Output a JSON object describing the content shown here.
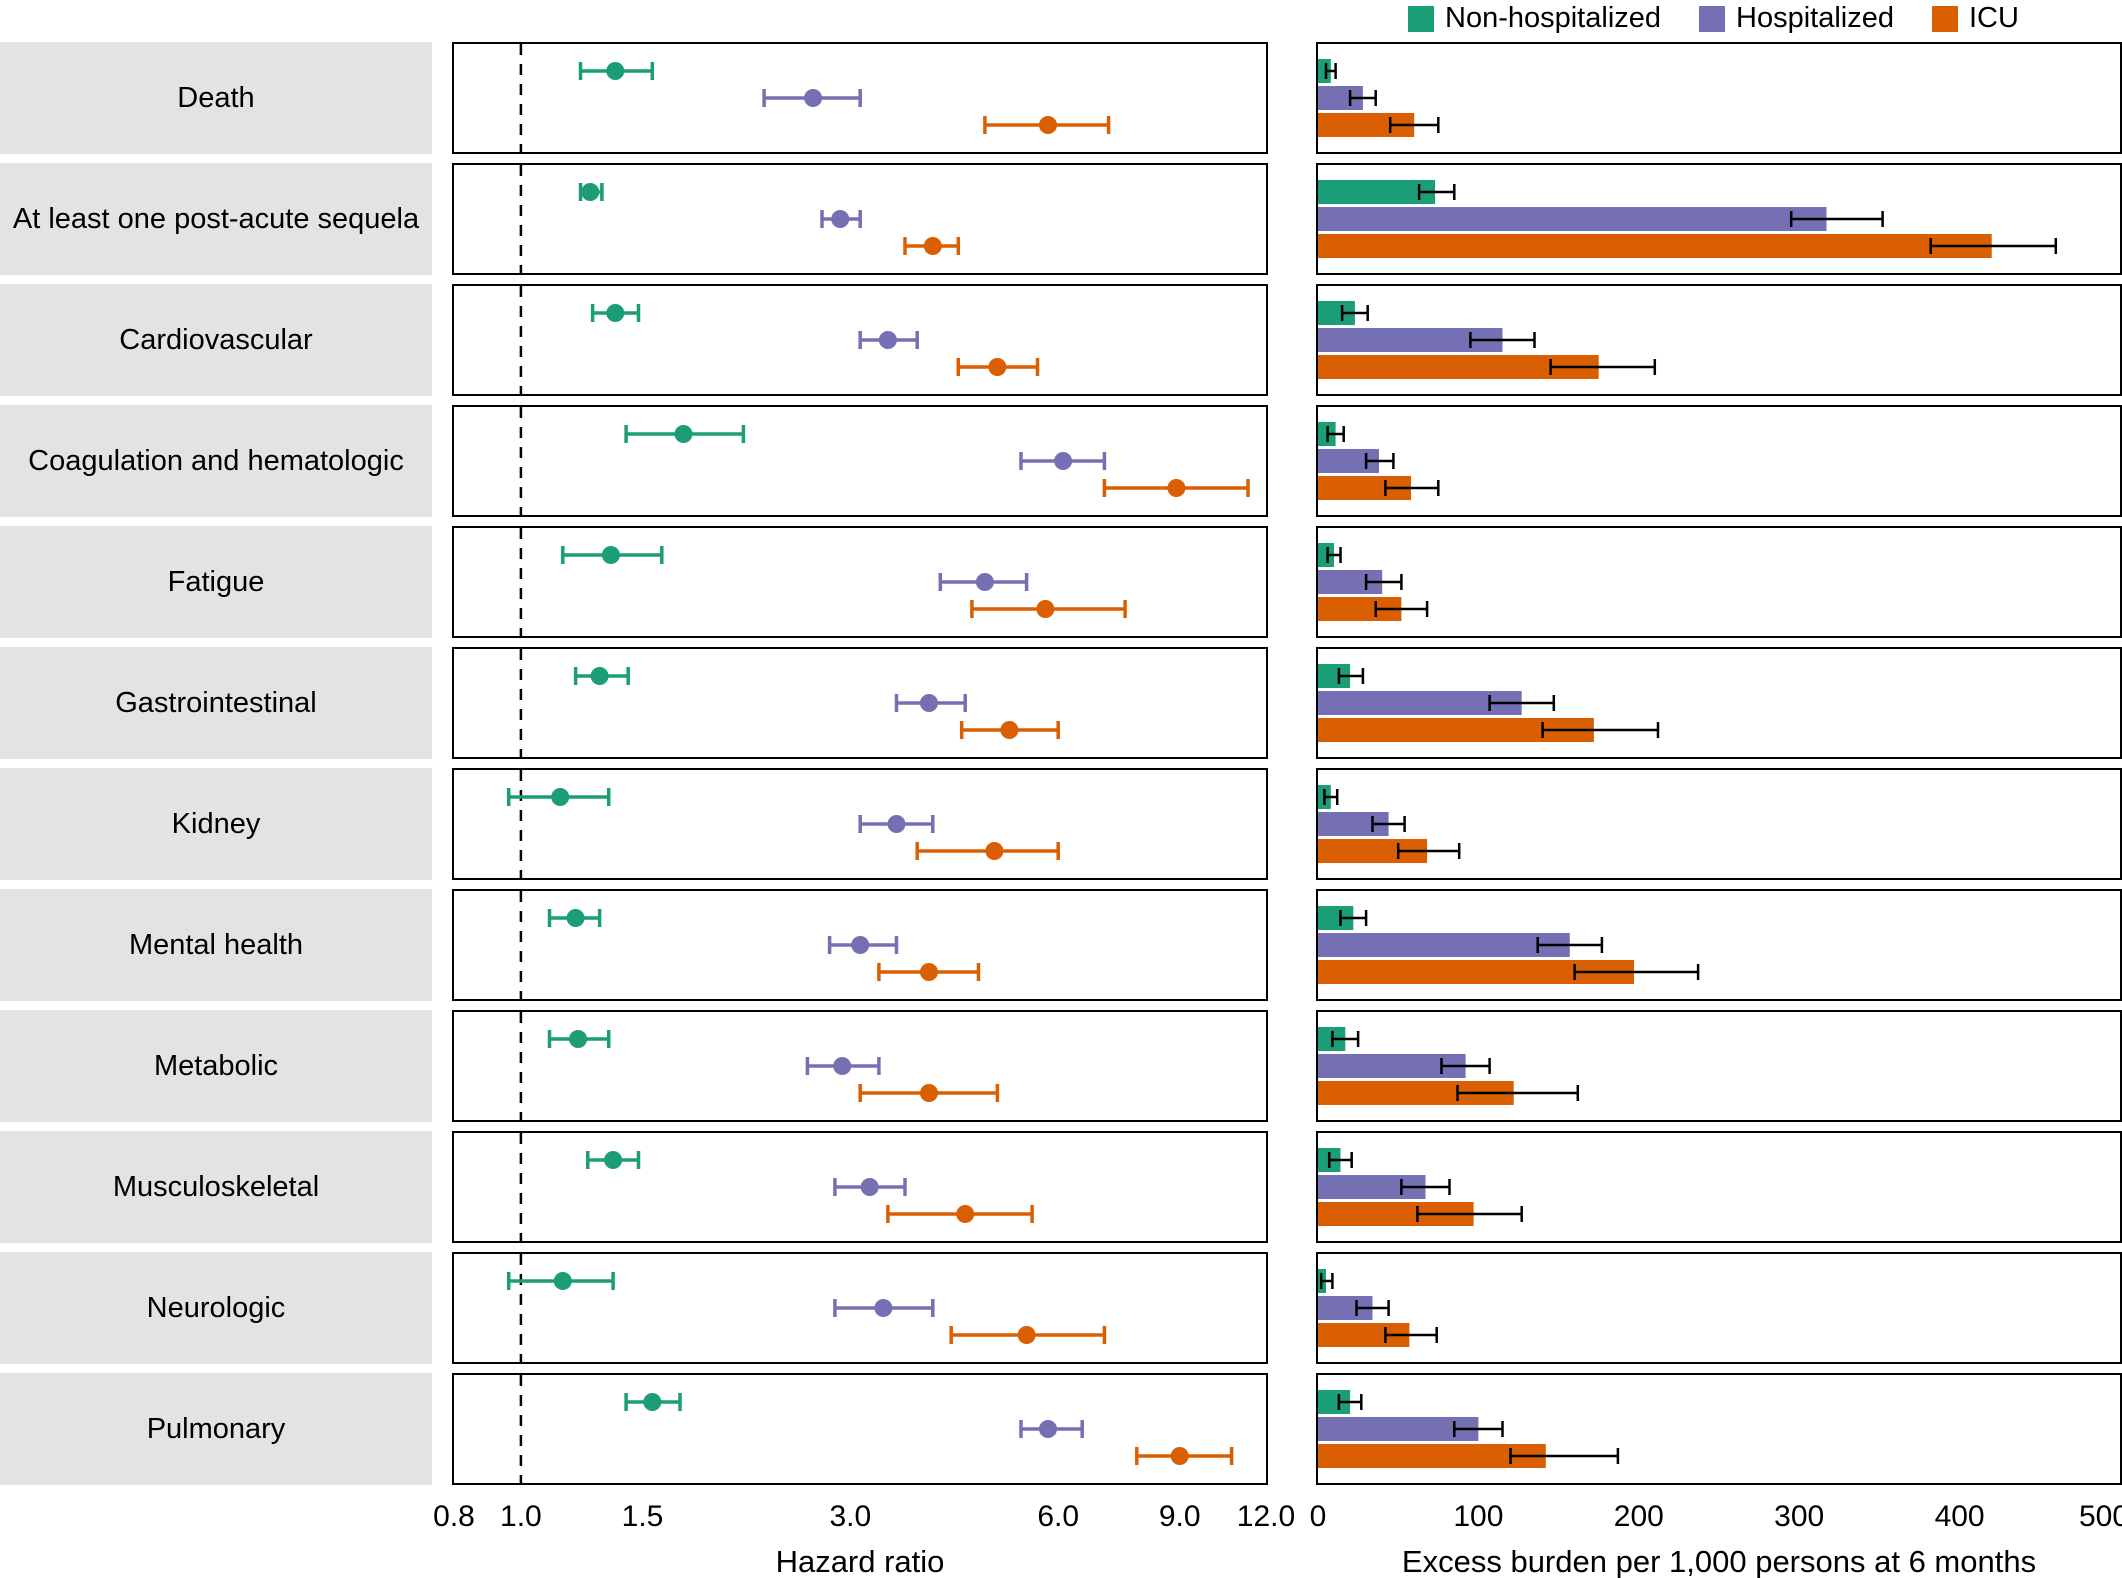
{
  "chart_data": {
    "type": "forest_and_bar",
    "legend": [
      {
        "label": "Non-hospitalized",
        "key": "non_hospitalized",
        "color": "#1b9e77"
      },
      {
        "label": "Hospitalized",
        "key": "hospitalized",
        "color": "#7570b3"
      },
      {
        "label": "ICU",
        "key": "icu",
        "color": "#d95f02"
      }
    ],
    "hr_axis": {
      "label": "Hazard ratio",
      "scale": "log",
      "range": [
        0.8,
        12.0
      ],
      "ticks": [
        0.8,
        1.0,
        1.5,
        3.0,
        6.0,
        9.0,
        12.0
      ],
      "tick_labels": [
        "0.8",
        "1.0",
        "1.5",
        "3.0",
        "6.0",
        "9.0",
        "12.0"
      ],
      "reference_line": 1.0,
      "grid": false
    },
    "burden_axis": {
      "label": "Excess burden per 1,000 persons at 6 months",
      "scale": "linear",
      "range": [
        0,
        500
      ],
      "ticks": [
        0,
        100,
        200,
        300,
        400,
        500
      ],
      "tick_labels": [
        "0",
        "100",
        "200",
        "300",
        "400",
        "500"
      ],
      "grid": false
    },
    "rows": [
      {
        "category": "Death",
        "hazard_ratio": {
          "non_hospitalized": {
            "est": 1.37,
            "lo": 1.22,
            "hi": 1.55
          },
          "hospitalized": {
            "est": 2.65,
            "lo": 2.25,
            "hi": 3.1
          },
          "icu": {
            "est": 5.8,
            "lo": 4.7,
            "hi": 7.1
          }
        },
        "excess_burden": {
          "non_hospitalized": {
            "est": 8,
            "lo": 5,
            "hi": 11
          },
          "hospitalized": {
            "est": 28,
            "lo": 20,
            "hi": 36
          },
          "icu": {
            "est": 60,
            "lo": 45,
            "hi": 75
          }
        }
      },
      {
        "category": "At least one post-acute sequela",
        "hazard_ratio": {
          "non_hospitalized": {
            "est": 1.26,
            "lo": 1.22,
            "hi": 1.31
          },
          "hospitalized": {
            "est": 2.9,
            "lo": 2.73,
            "hi": 3.1
          },
          "icu": {
            "est": 3.95,
            "lo": 3.6,
            "hi": 4.3
          }
        },
        "excess_burden": {
          "non_hospitalized": {
            "est": 73,
            "lo": 63,
            "hi": 85
          },
          "hospitalized": {
            "est": 317,
            "lo": 295,
            "hi": 352
          },
          "icu": {
            "est": 420,
            "lo": 382,
            "hi": 460
          }
        }
      },
      {
        "category": "Cardiovascular",
        "hazard_ratio": {
          "non_hospitalized": {
            "est": 1.37,
            "lo": 1.27,
            "hi": 1.48
          },
          "hospitalized": {
            "est": 3.4,
            "lo": 3.1,
            "hi": 3.75
          },
          "icu": {
            "est": 4.9,
            "lo": 4.3,
            "hi": 5.6
          }
        },
        "excess_burden": {
          "non_hospitalized": {
            "est": 23,
            "lo": 15,
            "hi": 31
          },
          "hospitalized": {
            "est": 115,
            "lo": 95,
            "hi": 135
          },
          "icu": {
            "est": 175,
            "lo": 145,
            "hi": 210
          }
        }
      },
      {
        "category": "Coagulation and hematologic",
        "hazard_ratio": {
          "non_hospitalized": {
            "est": 1.72,
            "lo": 1.42,
            "hi": 2.1
          },
          "hospitalized": {
            "est": 6.1,
            "lo": 5.3,
            "hi": 7.0
          },
          "icu": {
            "est": 8.9,
            "lo": 7.0,
            "hi": 11.3
          }
        },
        "excess_burden": {
          "non_hospitalized": {
            "est": 11,
            "lo": 6,
            "hi": 16
          },
          "hospitalized": {
            "est": 38,
            "lo": 30,
            "hi": 47
          },
          "icu": {
            "est": 58,
            "lo": 42,
            "hi": 75
          }
        }
      },
      {
        "category": "Fatigue",
        "hazard_ratio": {
          "non_hospitalized": {
            "est": 1.35,
            "lo": 1.15,
            "hi": 1.6
          },
          "hospitalized": {
            "est": 4.7,
            "lo": 4.05,
            "hi": 5.4
          },
          "icu": {
            "est": 5.75,
            "lo": 4.5,
            "hi": 7.5
          }
        },
        "excess_burden": {
          "non_hospitalized": {
            "est": 10,
            "lo": 6,
            "hi": 14
          },
          "hospitalized": {
            "est": 40,
            "lo": 30,
            "hi": 52
          },
          "icu": {
            "est": 52,
            "lo": 36,
            "hi": 68
          }
        }
      },
      {
        "category": "Gastrointestinal",
        "hazard_ratio": {
          "non_hospitalized": {
            "est": 1.3,
            "lo": 1.2,
            "hi": 1.43
          },
          "hospitalized": {
            "est": 3.9,
            "lo": 3.5,
            "hi": 4.4
          },
          "icu": {
            "est": 5.1,
            "lo": 4.35,
            "hi": 6.0
          }
        },
        "excess_burden": {
          "non_hospitalized": {
            "est": 20,
            "lo": 13,
            "hi": 28
          },
          "hospitalized": {
            "est": 127,
            "lo": 107,
            "hi": 147
          },
          "icu": {
            "est": 172,
            "lo": 140,
            "hi": 212
          }
        }
      },
      {
        "category": "Kidney",
        "hazard_ratio": {
          "non_hospitalized": {
            "est": 1.14,
            "lo": 0.96,
            "hi": 1.34
          },
          "hospitalized": {
            "est": 3.5,
            "lo": 3.1,
            "hi": 3.95
          },
          "icu": {
            "est": 4.85,
            "lo": 3.75,
            "hi": 6.0
          }
        },
        "excess_burden": {
          "non_hospitalized": {
            "est": 8,
            "lo": 4,
            "hi": 12
          },
          "hospitalized": {
            "est": 44,
            "lo": 34,
            "hi": 54
          },
          "icu": {
            "est": 68,
            "lo": 50,
            "hi": 88
          }
        }
      },
      {
        "category": "Mental health",
        "hazard_ratio": {
          "non_hospitalized": {
            "est": 1.2,
            "lo": 1.1,
            "hi": 1.3
          },
          "hospitalized": {
            "est": 3.1,
            "lo": 2.8,
            "hi": 3.5
          },
          "icu": {
            "est": 3.9,
            "lo": 3.3,
            "hi": 4.6
          }
        },
        "excess_burden": {
          "non_hospitalized": {
            "est": 22,
            "lo": 14,
            "hi": 30
          },
          "hospitalized": {
            "est": 157,
            "lo": 137,
            "hi": 177
          },
          "icu": {
            "est": 197,
            "lo": 160,
            "hi": 237
          }
        }
      },
      {
        "category": "Metabolic",
        "hazard_ratio": {
          "non_hospitalized": {
            "est": 1.21,
            "lo": 1.1,
            "hi": 1.34
          },
          "hospitalized": {
            "est": 2.92,
            "lo": 2.6,
            "hi": 3.3
          },
          "icu": {
            "est": 3.9,
            "lo": 3.1,
            "hi": 4.9
          }
        },
        "excess_burden": {
          "non_hospitalized": {
            "est": 17,
            "lo": 9,
            "hi": 25
          },
          "hospitalized": {
            "est": 92,
            "lo": 77,
            "hi": 107
          },
          "icu": {
            "est": 122,
            "lo": 87,
            "hi": 162
          }
        }
      },
      {
        "category": "Musculoskeletal",
        "hazard_ratio": {
          "non_hospitalized": {
            "est": 1.36,
            "lo": 1.25,
            "hi": 1.48
          },
          "hospitalized": {
            "est": 3.2,
            "lo": 2.85,
            "hi": 3.6
          },
          "icu": {
            "est": 4.4,
            "lo": 3.4,
            "hi": 5.5
          }
        },
        "excess_burden": {
          "non_hospitalized": {
            "est": 14,
            "lo": 7,
            "hi": 21
          },
          "hospitalized": {
            "est": 67,
            "lo": 52,
            "hi": 82
          },
          "icu": {
            "est": 97,
            "lo": 62,
            "hi": 127
          }
        }
      },
      {
        "category": "Neurologic",
        "hazard_ratio": {
          "non_hospitalized": {
            "est": 1.15,
            "lo": 0.96,
            "hi": 1.36
          },
          "hospitalized": {
            "est": 3.35,
            "lo": 2.85,
            "hi": 3.95
          },
          "icu": {
            "est": 5.4,
            "lo": 4.2,
            "hi": 7.0
          }
        },
        "excess_burden": {
          "non_hospitalized": {
            "est": 5,
            "lo": 2,
            "hi": 9
          },
          "hospitalized": {
            "est": 34,
            "lo": 24,
            "hi": 44
          },
          "icu": {
            "est": 57,
            "lo": 42,
            "hi": 74
          }
        }
      },
      {
        "category": "Pulmonary",
        "hazard_ratio": {
          "non_hospitalized": {
            "est": 1.55,
            "lo": 1.42,
            "hi": 1.7
          },
          "hospitalized": {
            "est": 5.8,
            "lo": 5.3,
            "hi": 6.5
          },
          "icu": {
            "est": 9.0,
            "lo": 7.8,
            "hi": 10.7
          }
        },
        "excess_burden": {
          "non_hospitalized": {
            "est": 20,
            "lo": 13,
            "hi": 27
          },
          "hospitalized": {
            "est": 100,
            "lo": 85,
            "hi": 115
          },
          "icu": {
            "est": 142,
            "lo": 120,
            "hi": 187
          }
        }
      }
    ]
  }
}
